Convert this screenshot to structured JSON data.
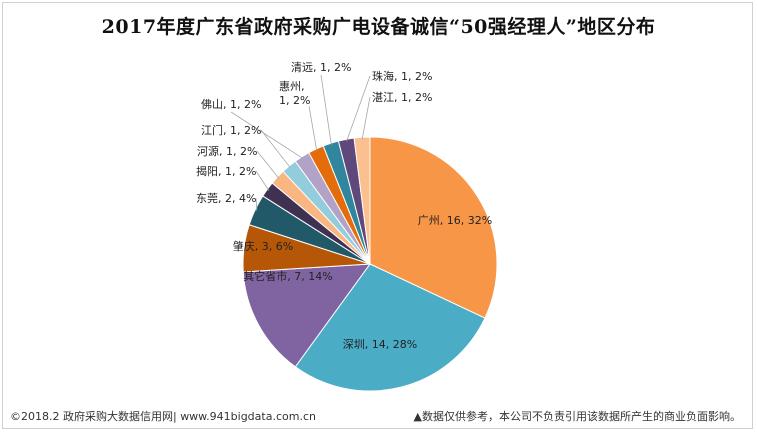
{
  "title": "2017年度广东省政府采购广电设备诚信“50强经理人”地区分布",
  "footer": {
    "left": "©2018.2 政府采购大数据信用网| www.941bigdata.com.cn",
    "right": "▲数据仅供参考，本公司不负责引用该数据所产生的商业负面影响。"
  },
  "chart_data": {
    "type": "pie",
    "title": "2017年度广东省政府采购广电设备诚信“50强经理人”地区分布",
    "slices": [
      {
        "name": "广州",
        "value": 16,
        "percent": "32%",
        "label": "广州, 16, 32%",
        "color": "#F79646"
      },
      {
        "name": "深圳",
        "value": 14,
        "percent": "28%",
        "label": "深圳, 14, 28%",
        "color": "#4BACC6"
      },
      {
        "name": "其它省市",
        "value": 7,
        "percent": "14%",
        "label": "其它省市, 7, 14%",
        "color": "#8064A2"
      },
      {
        "name": "肇庆",
        "value": 3,
        "percent": "6%",
        "label": "肇庆, 3, 6%",
        "color": "#B65708"
      },
      {
        "name": "东莞",
        "value": 2,
        "percent": "4%",
        "label": "东莞, 2, 4%",
        "color": "#215968"
      },
      {
        "name": "揭阳",
        "value": 1,
        "percent": "2%",
        "label": "揭阳, 1, 2%",
        "color": "#403152"
      },
      {
        "name": "河源",
        "value": 1,
        "percent": "2%",
        "label": "河源, 1, 2%",
        "color": "#F9B680"
      },
      {
        "name": "江门",
        "value": 1,
        "percent": "2%",
        "label": "江门, 1, 2%",
        "color": "#93CDDD"
      },
      {
        "name": "佛山",
        "value": 1,
        "percent": "2%",
        "label": "佛山, 1, 2%",
        "color": "#B3A2C7"
      },
      {
        "name": "惠州",
        "value": 1,
        "percent": "2%",
        "label": "惠州,\n1, 2%",
        "color": "#E46C0A"
      },
      {
        "name": "清远",
        "value": 1,
        "percent": "2%",
        "label": "清远, 1, 2%",
        "color": "#31859C"
      },
      {
        "name": "珠海",
        "value": 1,
        "percent": "2%",
        "label": "珠海, 1, 2%",
        "color": "#5F497A"
      },
      {
        "name": "湛江",
        "value": 1,
        "percent": "2%",
        "label": "湛江, 1, 2%",
        "color": "#FAC090"
      }
    ]
  }
}
